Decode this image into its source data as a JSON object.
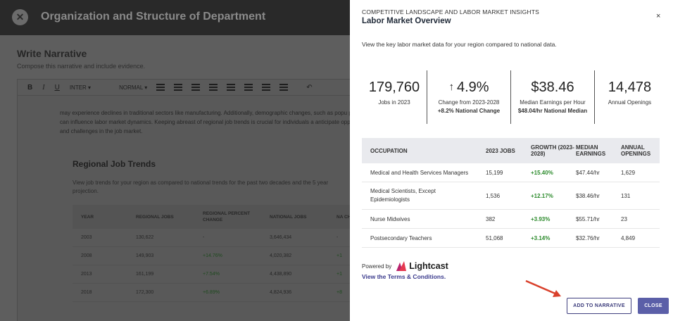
{
  "background": {
    "page_title": "Organization and Structure of Department",
    "heading": "Write Narrative",
    "subheading": "Compose this narrative and include evidence.",
    "toolbar": {
      "bold": "B",
      "italic": "I",
      "underline": "U",
      "font": "INTER",
      "format": "NORMAL"
    },
    "paragraph": "may experience declines in traditional sectors like manufacturing. Additionally, demographic changes, such as popu populations, can influence labor market dynamics. Keeping abreast of regional job trends is crucial for individuals a anticipate opportunities and challenges in the job market.",
    "section_title": "Regional Job Trends",
    "section_text": "View job trends for your region as compared to national trends for the past two decades and the 5 year projection.",
    "table": {
      "headers": [
        "YEAR",
        "REGIONAL JOBS",
        "REGIONAL PERCENT CHANGE",
        "NATIONAL JOBS",
        "NA CH"
      ],
      "rows": [
        [
          "2003",
          "130,622",
          "-",
          "3,646,434",
          "-"
        ],
        [
          "2008",
          "149,903",
          "+14.76%",
          "4,020,382",
          "+1"
        ],
        [
          "2013",
          "161,199",
          "+7.54%",
          "4,438,890",
          "+1"
        ],
        [
          "2018",
          "172,300",
          "+6.89%",
          "4,824,936",
          "+8"
        ]
      ]
    }
  },
  "drawer": {
    "overline": "COMPETITIVE LANDSCAPE AND LABOR MARKET INSIGHTS",
    "title": "Labor Market Overview",
    "close_glyph": "×",
    "description": "View the key labor market data for your region compared to national data.",
    "stats": [
      {
        "value": "179,760",
        "label": "Jobs in 2023",
        "sub": ""
      },
      {
        "value": "4.9%",
        "label": "Change from 2023-2028",
        "sub": "+8.2% National Change",
        "icon": "arrow-up-icon"
      },
      {
        "value": "$38.46",
        "label": "Median Earnings per Hour",
        "sub": "$48.04/hr National Median"
      },
      {
        "value": "14,478",
        "label": "Annual Openings",
        "sub": ""
      }
    ],
    "table": {
      "headers": [
        "OCCUPATION",
        "2023 JOBS",
        "GROWTH (2023-2028)",
        "MEDIAN EARNINGS",
        "ANNUAL OPENINGS"
      ],
      "rows": [
        [
          "Medical and Health Services Managers",
          "15,199",
          "+15.40%",
          "$47.44/hr",
          "1,629"
        ],
        [
          "Medical Scientists, Except Epidemiologists",
          "1,536",
          "+12.17%",
          "$38.46/hr",
          "131"
        ],
        [
          "Nurse Midwives",
          "382",
          "+3.93%",
          "$55.71/hr",
          "23"
        ],
        [
          "Postsecondary Teachers",
          "51,068",
          "+3.14%",
          "$32.76/hr",
          "4,849"
        ]
      ]
    },
    "powered_by": "Powered by",
    "brand": "Lightcast",
    "terms_link": "View the Terms & Conditions.",
    "add_button": "ADD TO NARRATIVE",
    "close_button": "CLOSE",
    "colors": {
      "accent": "#5b5fa8",
      "positive": "#2b8a2b",
      "arrow": "#d9402b",
      "brand": "#e5384f"
    }
  }
}
